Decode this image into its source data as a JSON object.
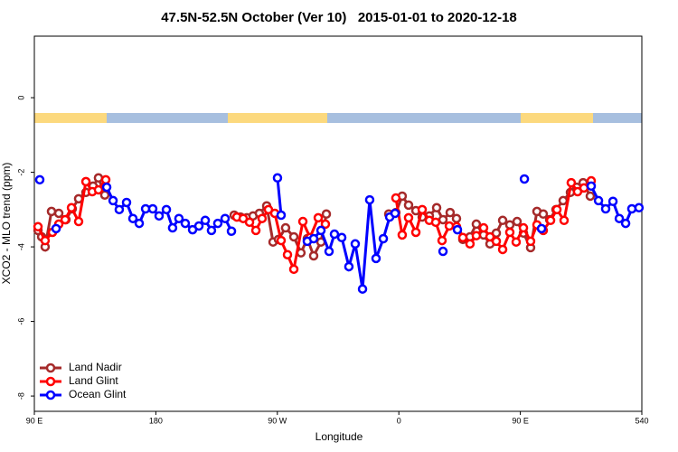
{
  "chart_data": {
    "type": "line",
    "title": "47.5N-52.5N October (Ver 10)   2015-01-01 to 2020-12-18",
    "x_label": "Longitude",
    "y_label": "XCO2 - MLO trend (ppm)",
    "xlim": [
      90,
      540
    ],
    "xticks": [
      {
        "value": 90,
        "label": "90 E"
      },
      180,
      {
        "value": 270,
        "label": "90 W"
      },
      {
        "value": 360,
        "label": "0"
      },
      {
        "value": 450,
        "label": "90 E"
      },
      540
    ],
    "ylim": [
      -8.41,
      1.65
    ],
    "yticks": [
      -8,
      -6,
      -4,
      -2,
      0
    ],
    "legend": "bottomleft",
    "series": [
      {
        "name": "Land Nadir",
        "color": "#a52a2a",
        "x": [
          92.7,
          95.4,
          98.0,
          102.7,
          108.1,
          113.4,
          118.1,
          122.8,
          128.2,
          133.5,
          137.5,
          142.2,
          null,
          238.0,
          242.7,
          247.4,
          252.0,
          256.7,
          262.1,
          266.8,
          270.8,
          276.1,
          282.2,
          287.5,
          292.2,
          296.9,
          302.3,
          306.3,
          null,
          352.5,
          357.8,
          362.5,
          367.2,
          372.6,
          377.3,
          382.6,
          388.0,
          392.7,
          398.0,
          402.7,
          407.4,
          412.7,
          417.4,
          422.8,
          427.5,
          432.2,
          436.9,
          442.2,
          447.6,
          452.3,
          457.6,
          462.3,
          467.0,
          471.7,
          476.4,
          481.7,
          487.1,
          491.8,
          496.5,
          501.8
        ],
        "values": [
          -3.56,
          -3.73,
          -4.0,
          -3.05,
          -3.1,
          -3.27,
          -2.98,
          -2.71,
          -2.54,
          -2.37,
          -2.15,
          -2.61,
          null,
          -3.15,
          -3.2,
          -3.22,
          -3.17,
          -3.1,
          -2.9,
          -3.87,
          -3.8,
          -3.49,
          -3.73,
          -4.16,
          -3.78,
          -4.24,
          -3.87,
          -3.12,
          null,
          -3.12,
          -3.08,
          -2.64,
          -2.88,
          -3.03,
          -3.2,
          -3.17,
          -2.95,
          -3.27,
          -3.08,
          -3.24,
          -3.8,
          -3.73,
          -3.39,
          -3.68,
          -3.92,
          -3.63,
          -3.29,
          -3.41,
          -3.32,
          -3.63,
          -4.02,
          -3.05,
          -3.12,
          -3.27,
          -3.0,
          -2.76,
          -2.54,
          -2.4,
          -2.28,
          -2.64
        ]
      },
      {
        "name": "Land Glint",
        "color": "#ff0000",
        "x": [
          92.7,
          98.0,
          103.4,
          108.1,
          112.8,
          117.5,
          122.8,
          128.2,
          132.9,
          137.5,
          142.9,
          null,
          240.0,
          244.7,
          249.4,
          254.1,
          258.7,
          263.4,
          268.1,
          272.8,
          277.5,
          282.2,
          288.9,
          294.2,
          300.3,
          305.6,
          null,
          357.8,
          362.5,
          367.2,
          372.6,
          377.3,
          382.6,
          387.3,
          392.0,
          397.4,
          402.7,
          407.4,
          412.7,
          417.4,
          422.8,
          427.5,
          432.2,
          436.9,
          442.2,
          446.9,
          452.3,
          457.6,
          462.3,
          467.0,
          472.4,
          477.1,
          482.4,
          487.7,
          492.4,
          497.1,
          502.5
        ],
        "values": [
          -3.46,
          -3.83,
          -3.61,
          -3.39,
          -3.27,
          -2.95,
          -3.32,
          -2.25,
          -2.52,
          -2.47,
          -2.2,
          null,
          -3.2,
          -3.24,
          -3.34,
          -3.56,
          -3.24,
          -3.0,
          -3.1,
          -3.83,
          -4.21,
          -4.6,
          -3.32,
          -3.75,
          -3.22,
          -3.39,
          null,
          -2.69,
          -3.68,
          -3.22,
          -3.61,
          -3.0,
          -3.29,
          -3.34,
          -3.83,
          -3.44,
          -3.46,
          -3.75,
          -3.92,
          -3.7,
          -3.49,
          -3.73,
          -3.85,
          -4.07,
          -3.61,
          -3.87,
          -3.49,
          -3.85,
          -3.41,
          -3.56,
          -3.29,
          -3.0,
          -3.29,
          -2.28,
          -2.52,
          -2.42,
          -2.23
        ]
      },
      {
        "name": "Ocean Glint",
        "color": "#0000ff",
        "x": [
          94.0,
          null,
          106.1,
          null,
          143.6,
          148.3,
          152.9,
          158.3,
          163.0,
          167.7,
          172.4,
          177.7,
          182.4,
          187.8,
          192.4,
          197.1,
          201.8,
          207.2,
          211.9,
          216.6,
          221.2,
          225.9,
          231.3,
          236.0,
          null,
          270.1,
          272.8,
          null,
          292.2,
          296.9,
          302.3,
          308.3,
          312.3,
          317.7,
          323.0,
          327.7,
          333.1,
          338.4,
          343.1,
          348.5,
          353.2,
          357.2,
          null,
          392.7,
          null,
          403.4,
          null,
          453.0,
          null,
          465.7,
          null,
          502.5,
          507.9,
          513.2,
          518.6,
          523.3,
          528.0,
          532.6,
          537.9
        ],
        "values": [
          -2.2,
          null,
          -3.51,
          null,
          -2.4,
          -2.76,
          -3.0,
          -2.81,
          -3.24,
          -3.37,
          -2.98,
          -2.98,
          -3.17,
          -3.0,
          -3.49,
          -3.24,
          -3.37,
          -3.54,
          -3.44,
          -3.29,
          -3.56,
          -3.37,
          -3.24,
          -3.58,
          null,
          -2.15,
          -3.15,
          null,
          -3.85,
          -3.78,
          -3.56,
          -4.12,
          -3.66,
          -3.75,
          -4.53,
          -3.92,
          -5.13,
          -2.74,
          -4.31,
          -3.78,
          -3.2,
          -3.1,
          null,
          -4.12,
          null,
          -3.54,
          null,
          -2.18,
          null,
          -3.51,
          null,
          -2.37,
          -2.76,
          -2.98,
          -2.78,
          -3.24,
          -3.37,
          -2.98,
          -2.95
        ]
      }
    ]
  }
}
